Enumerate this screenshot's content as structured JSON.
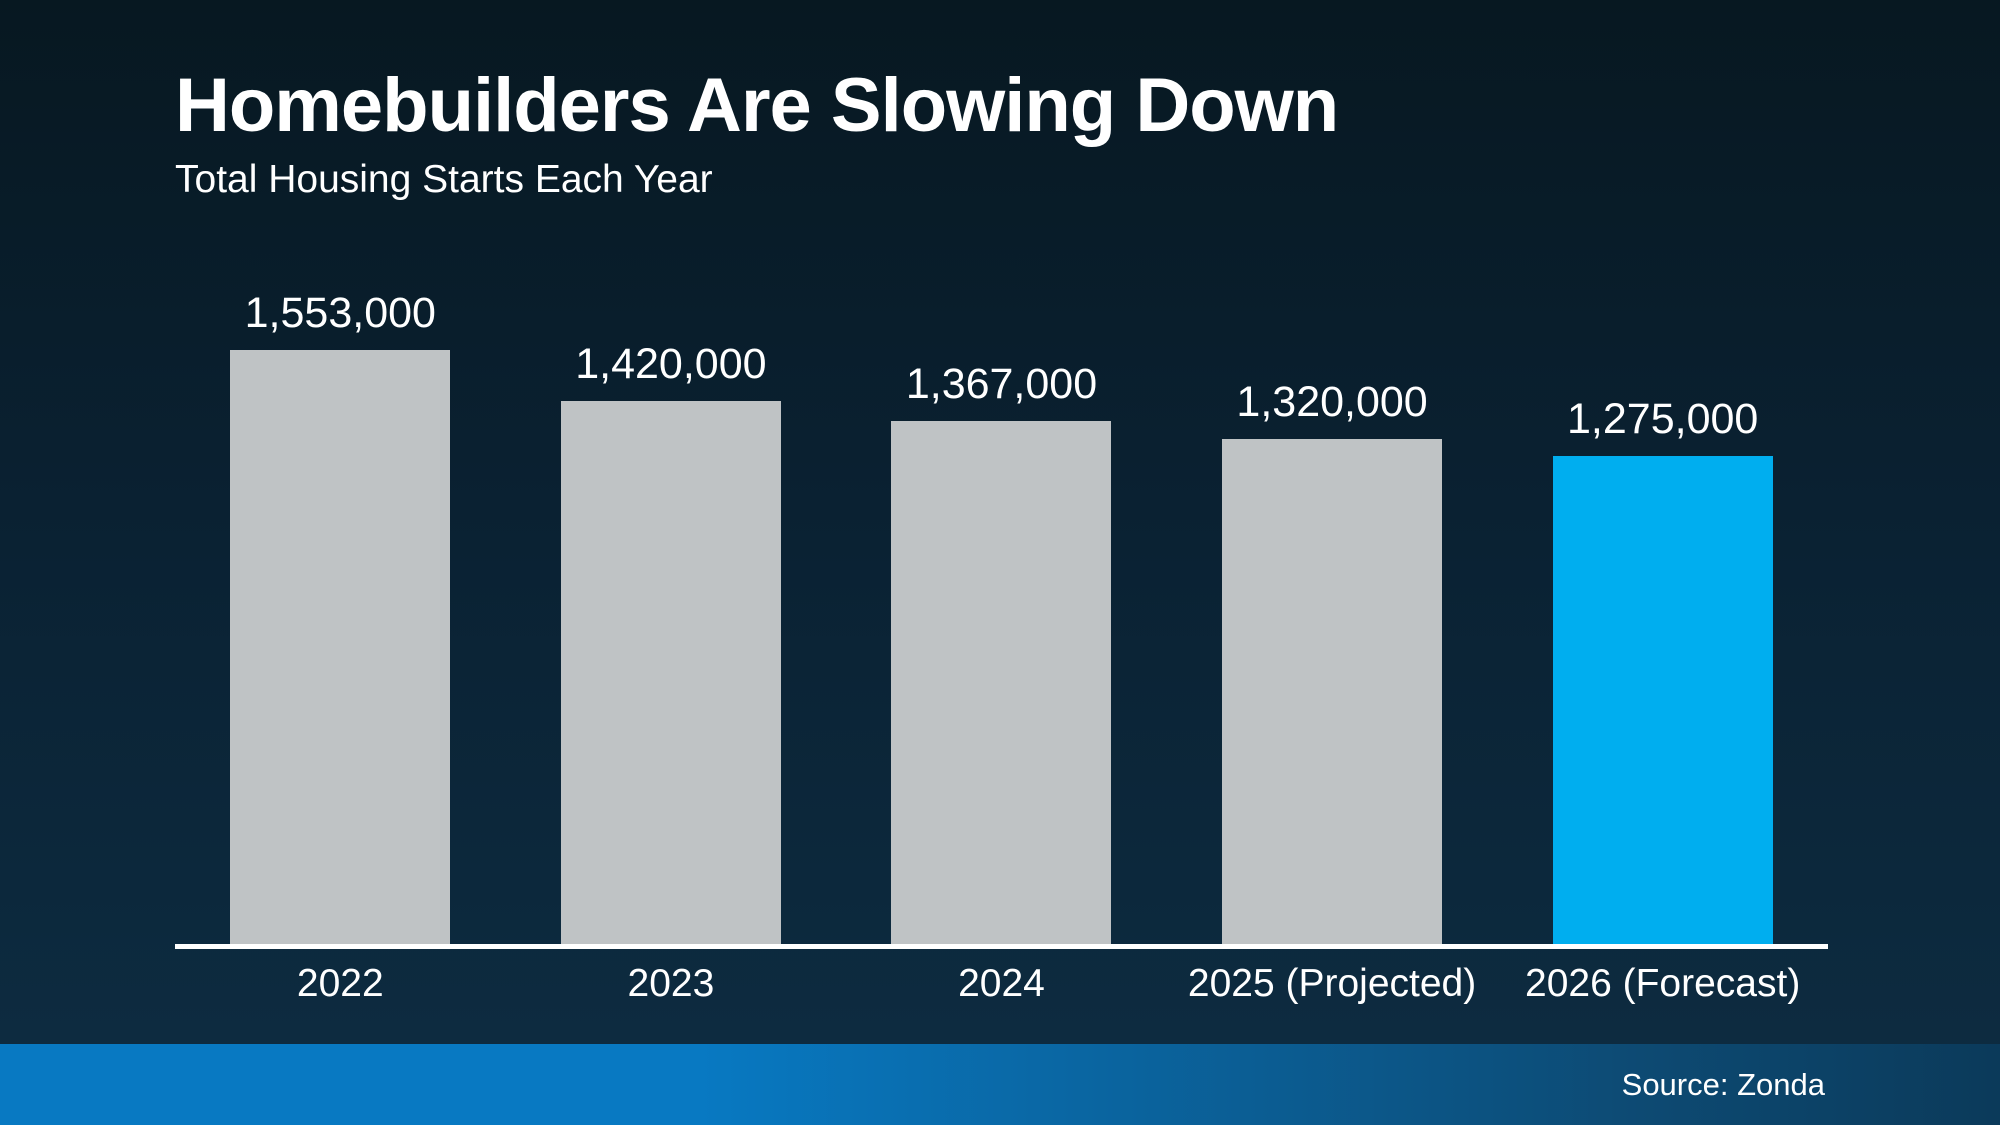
{
  "page": {
    "title": "Homebuilders Are Slowing Down",
    "subtitle": "Total Housing Starts Each Year",
    "source": "Source: Zonda"
  },
  "colors": {
    "background_top": "#071821",
    "background_bottom": "#0d2b40",
    "bar_default": "#bfc3c5",
    "bar_highlight": "#00aeef",
    "axis_line": "#ffffff",
    "footer_left": "#0879c2",
    "footer_right": "#0b3a5a",
    "text": "#ffffff"
  },
  "chart_data": {
    "type": "bar",
    "title": "Homebuilders Are Slowing Down",
    "subtitle": "Total Housing Starts Each Year",
    "categories": [
      "2022",
      "2023",
      "2024",
      "2025 (Projected)",
      "2026 (Forecast)"
    ],
    "values": [
      1553000,
      1420000,
      1367000,
      1320000,
      1275000
    ],
    "value_labels": [
      "1,553,000",
      "1,420,000",
      "1,367,000",
      "1,320,000",
      "1,275,000"
    ],
    "highlight_index": 4,
    "xlabel": "",
    "ylabel": "",
    "ylim": [
      0,
      1600000
    ],
    "grid": false,
    "legend": false,
    "source": "Source: Zonda"
  }
}
